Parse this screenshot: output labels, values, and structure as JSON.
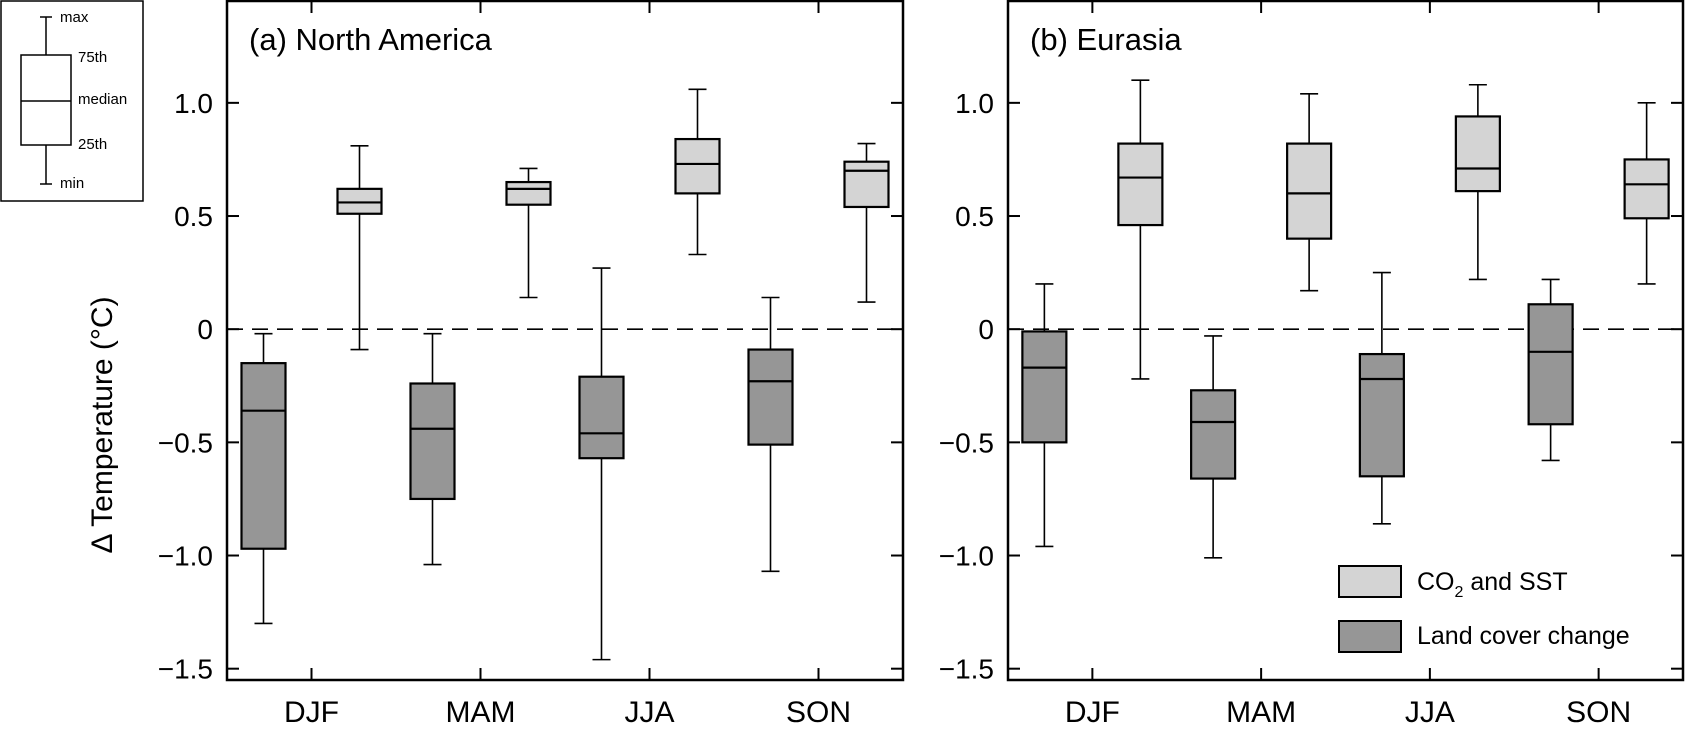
{
  "ylabel": "Δ Temperature (°C)",
  "legend": {
    "entries": [
      {
        "label": "CO",
        "sub": "2",
        "suffix": " and SST",
        "color": "#d4d4d4"
      },
      {
        "label": "Land cover change",
        "sub": "",
        "suffix": "",
        "color": "#969696"
      }
    ]
  },
  "key": {
    "labels": {
      "max": "max",
      "q3": "75th",
      "median": "median",
      "q1": "25th",
      "min": "min"
    }
  },
  "chart_data": [
    {
      "type": "box",
      "title": "(a) North America",
      "categories": [
        "DJF",
        "MAM",
        "JJA",
        "SON"
      ],
      "ylim": [
        -1.55,
        1.45
      ],
      "yticks": [
        -1.5,
        -1.0,
        -0.5,
        0,
        0.5,
        1.0
      ],
      "ytick_labels": [
        "−1.5",
        "−1.0",
        "−0.5",
        "0",
        "0.5",
        "1.0"
      ],
      "zero_line": true,
      "series": [
        {
          "name": "Land cover change",
          "color": "#969696",
          "boxes": [
            {
              "min": -1.3,
              "q1": -0.97,
              "median": -0.36,
              "q3": -0.15,
              "max": -0.02
            },
            {
              "min": -1.04,
              "q1": -0.75,
              "median": -0.44,
              "q3": -0.24,
              "max": -0.02
            },
            {
              "min": -1.46,
              "q1": -0.57,
              "median": -0.46,
              "q3": -0.21,
              "max": 0.27
            },
            {
              "min": -1.07,
              "q1": -0.51,
              "median": -0.23,
              "q3": -0.09,
              "max": 0.14
            }
          ]
        },
        {
          "name": "CO2 and SST",
          "color": "#d4d4d4",
          "boxes": [
            {
              "min": -0.09,
              "q1": 0.51,
              "median": 0.56,
              "q3": 0.62,
              "max": 0.81
            },
            {
              "min": 0.14,
              "q1": 0.55,
              "median": 0.62,
              "q3": 0.65,
              "max": 0.71
            },
            {
              "min": 0.33,
              "q1": 0.6,
              "median": 0.73,
              "q3": 0.84,
              "max": 1.06
            },
            {
              "min": 0.12,
              "q1": 0.54,
              "median": 0.7,
              "q3": 0.74,
              "max": 0.82
            }
          ]
        }
      ]
    },
    {
      "type": "box",
      "title": "(b) Eurasia",
      "categories": [
        "DJF",
        "MAM",
        "JJA",
        "SON"
      ],
      "ylim": [
        -1.55,
        1.45
      ],
      "yticks": [
        -1.5,
        -1.0,
        -0.5,
        0,
        0.5,
        1.0
      ],
      "ytick_labels": [
        "−1.5",
        "−1.0",
        "−0.5",
        "0",
        "0.5",
        "1.0"
      ],
      "zero_line": true,
      "series": [
        {
          "name": "Land cover change",
          "color": "#969696",
          "boxes": [
            {
              "min": -0.96,
              "q1": -0.5,
              "median": -0.17,
              "q3": -0.01,
              "max": 0.2
            },
            {
              "min": -1.01,
              "q1": -0.66,
              "median": -0.41,
              "q3": -0.27,
              "max": -0.03
            },
            {
              "min": -0.86,
              "q1": -0.65,
              "median": -0.22,
              "q3": -0.11,
              "max": 0.25
            },
            {
              "min": -0.58,
              "q1": -0.42,
              "median": -0.1,
              "q3": 0.11,
              "max": 0.22
            }
          ]
        },
        {
          "name": "CO2 and SST",
          "color": "#d4d4d4",
          "boxes": [
            {
              "min": -0.22,
              "q1": 0.46,
              "median": 0.67,
              "q3": 0.82,
              "max": 1.1
            },
            {
              "min": 0.17,
              "q1": 0.4,
              "median": 0.6,
              "q3": 0.82,
              "max": 1.04
            },
            {
              "min": 0.22,
              "q1": 0.61,
              "median": 0.71,
              "q3": 0.94,
              "max": 1.08
            },
            {
              "min": 0.2,
              "q1": 0.49,
              "median": 0.64,
              "q3": 0.75,
              "max": 1.0
            }
          ]
        }
      ]
    }
  ]
}
